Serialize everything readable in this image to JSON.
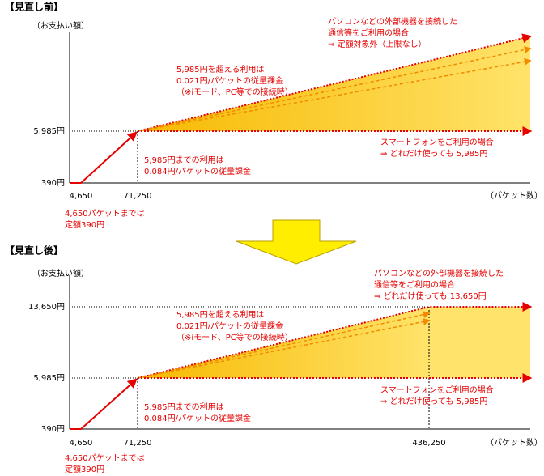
{
  "panels": [
    {
      "heading": "【見直し前】",
      "y_axis_label": "（お支払い額）",
      "x_axis_label": "（パケット数）",
      "y_labels": [
        "5,985円",
        "390円"
      ],
      "x_labels": [
        "4,650",
        "71,250"
      ],
      "note_pc": [
        "パソコンなどの外部機器を接続した",
        "通信等をご利用の場合",
        "⇒ 定額対象外（上限なし）"
      ],
      "note_over": [
        "5,985円を超える利用は",
        "0.021円/パケットの従量課金",
        "（※iモード、PC等での接続時）"
      ],
      "note_smartphone": [
        "スマートフォンをご利用の場合",
        "⇒ どれだけ使っても 5,985円"
      ],
      "note_under": [
        "5,985円までの利用は",
        "0.084円/パケットの従量課金"
      ],
      "note_flat": [
        "4,650パケットまでは",
        "定額390円"
      ]
    },
    {
      "heading": "【見直し後】",
      "y_axis_label": "（お支払い額）",
      "x_axis_label": "（パケット数）",
      "y_labels": [
        "13,650円",
        "5,985円",
        "390円"
      ],
      "x_labels": [
        "4,650",
        "71,250",
        "436,250"
      ],
      "note_pc": [
        "パソコンなどの外部機器を接続した",
        "通信等をご利用の場合",
        "⇒ どれだけ使っても 13,650円"
      ],
      "note_over": [
        "5,985円を超える利用は",
        "0.021円/パケットの従量課金",
        "（※iモード、PC等での接続時）"
      ],
      "note_smartphone": [
        "スマートフォンをご利用の場合",
        "⇒ どれだけ使っても 5,985円"
      ],
      "note_under": [
        "5,985円までの利用は",
        "0.084円/パケットの従量課金"
      ],
      "note_flat": [
        "4,650パケットまでは",
        "定額390円"
      ]
    }
  ]
}
